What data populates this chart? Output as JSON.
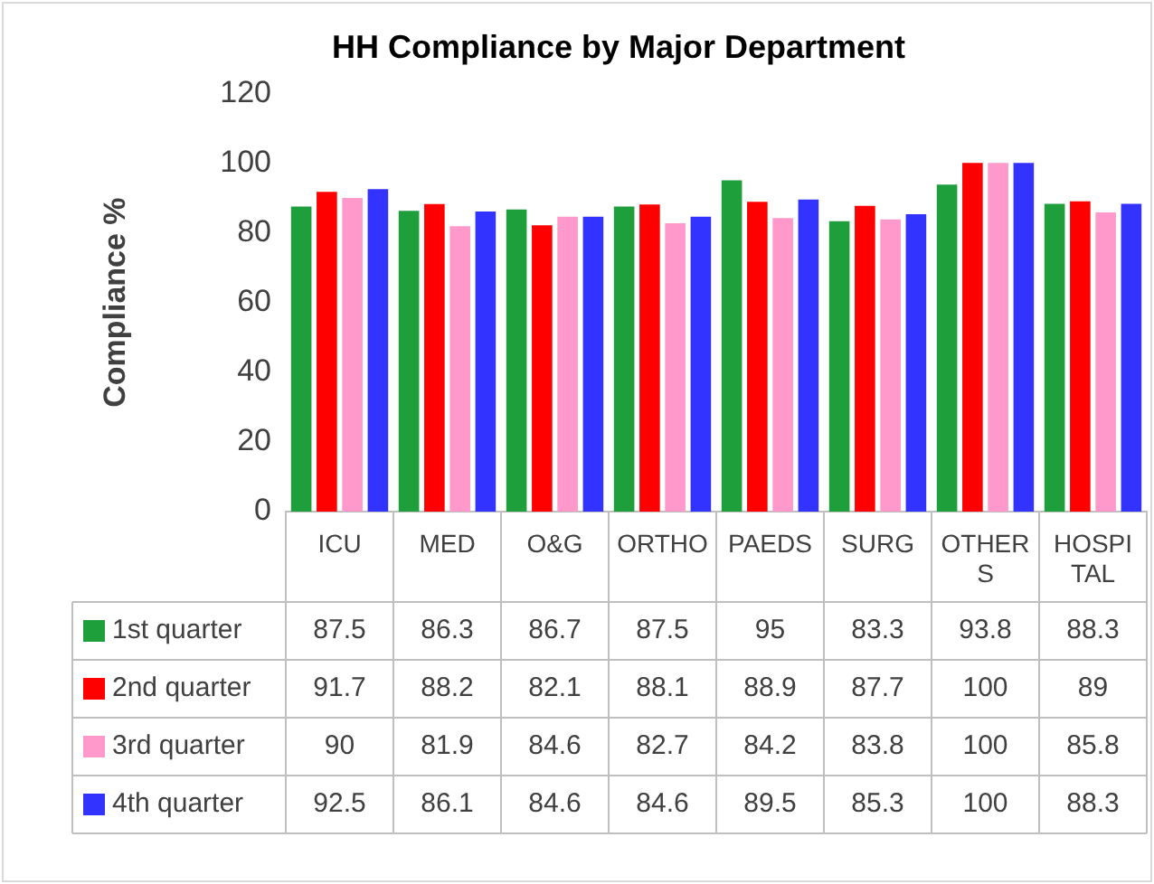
{
  "chart_data": {
    "type": "bar",
    "title": "HH Compliance by Major Department",
    "ylabel": "Compliance %",
    "categories": [
      "ICU",
      "MED",
      "O&G",
      "ORTHO",
      "PAEDS",
      "SURG",
      "OTHERS",
      "HOSPITAL"
    ],
    "series": [
      {
        "name": "1st quarter",
        "color": "#1f9e3c",
        "values": [
          87.5,
          86.3,
          86.7,
          87.5,
          95,
          83.3,
          93.8,
          88.3
        ]
      },
      {
        "name": "2nd quarter",
        "color": "#ff0000",
        "values": [
          91.7,
          88.2,
          82.1,
          88.1,
          88.9,
          87.7,
          100,
          89
        ]
      },
      {
        "name": "3rd quarter",
        "color": "#ff99cc",
        "values": [
          90,
          81.9,
          84.6,
          82.7,
          84.2,
          83.8,
          100,
          85.8
        ]
      },
      {
        "name": "4th quarter",
        "color": "#3333ff",
        "values": [
          92.5,
          86.1,
          84.6,
          84.6,
          89.5,
          85.3,
          100,
          88.3
        ]
      }
    ],
    "ylim": [
      0,
      120
    ],
    "yticks": [
      0,
      20,
      40,
      60,
      80,
      100,
      120
    ],
    "grid": false,
    "legend": "bottom left",
    "data_labels": true
  }
}
